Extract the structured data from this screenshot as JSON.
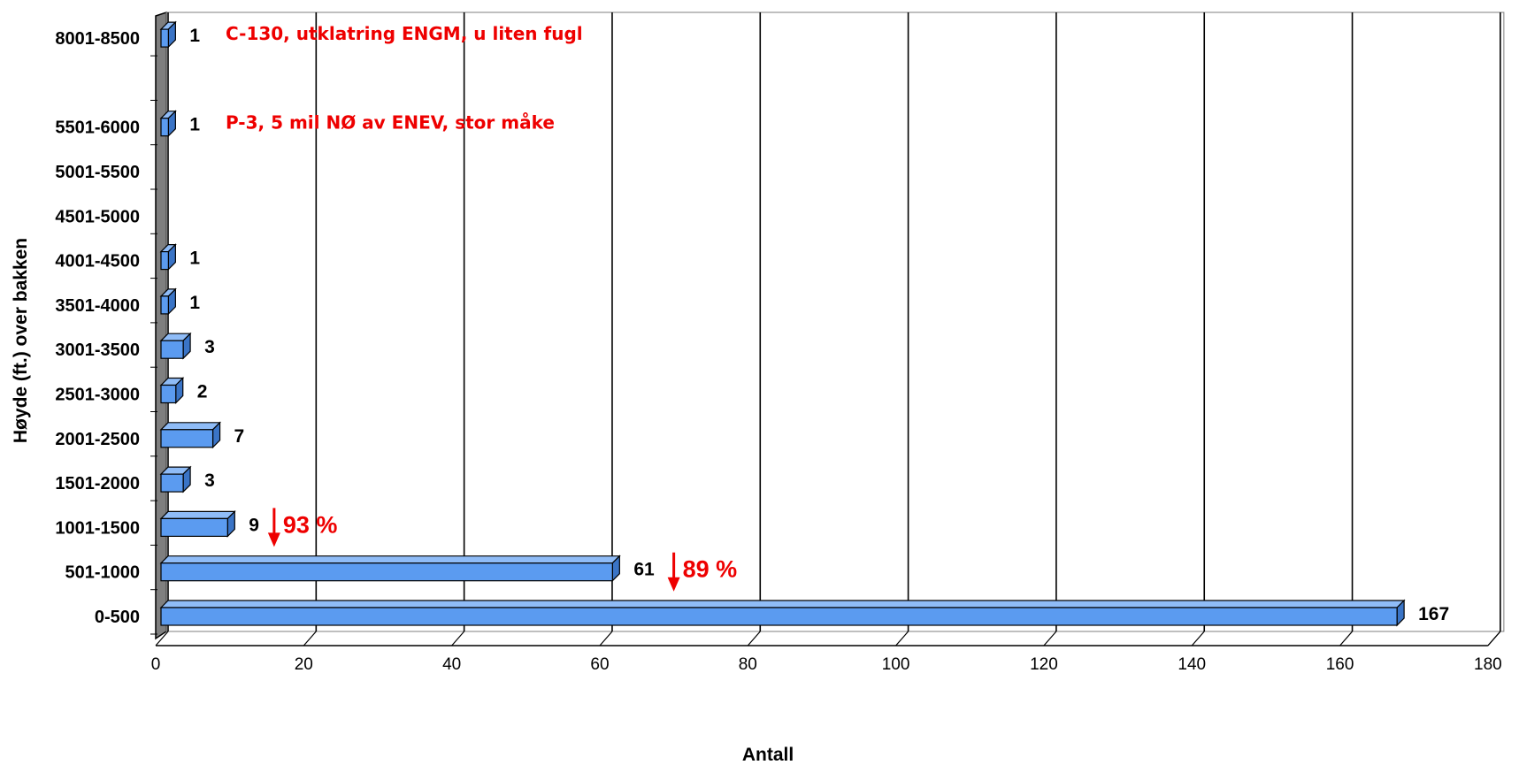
{
  "chart_data": {
    "type": "bar",
    "orientation": "horizontal",
    "categories": [
      "0-500",
      "501-1000",
      "1001-1500",
      "1501-2000",
      "2001-2500",
      "2501-3000",
      "3001-3500",
      "3501-4000",
      "4001-4500",
      "4501-5000",
      "5001-5500",
      "5501-6000",
      "",
      "8001-8500"
    ],
    "values": [
      167,
      61,
      9,
      3,
      7,
      2,
      3,
      1,
      1,
      null,
      null,
      1,
      null,
      1
    ],
    "data_labels": [
      "167",
      "61",
      "9",
      "3",
      "7",
      "2",
      "3",
      "1",
      "1",
      "",
      "",
      "1",
      "",
      "1"
    ],
    "xlabel": "Antall",
    "ylabel": "Høyde (ft.) over bakken",
    "xlim": [
      0,
      180
    ],
    "xticks": [
      0,
      20,
      40,
      60,
      80,
      100,
      120,
      140,
      160,
      180
    ],
    "grid": "vertical",
    "three_d": true,
    "colors": {
      "bar": "#5b9bf0",
      "bar_top": "#8fbcf7",
      "bar_side": "#3a74c6",
      "wall": "#7f7f7f",
      "annotation": "#ee0000"
    },
    "annotations": [
      {
        "category": "8001-8500",
        "text": "C-130, utklatring ENGM, u liten fugl"
      },
      {
        "category": "5501-6000",
        "text": "P-3, 5 mil NØ av ENEV, stor måke"
      }
    ],
    "markers": [
      {
        "category": "1001-1500",
        "x": 16,
        "text": "93 %",
        "icon": "down-arrow-icon"
      },
      {
        "category": "501-1000",
        "x": 70,
        "text": "89 %",
        "icon": "down-arrow-icon"
      }
    ]
  }
}
